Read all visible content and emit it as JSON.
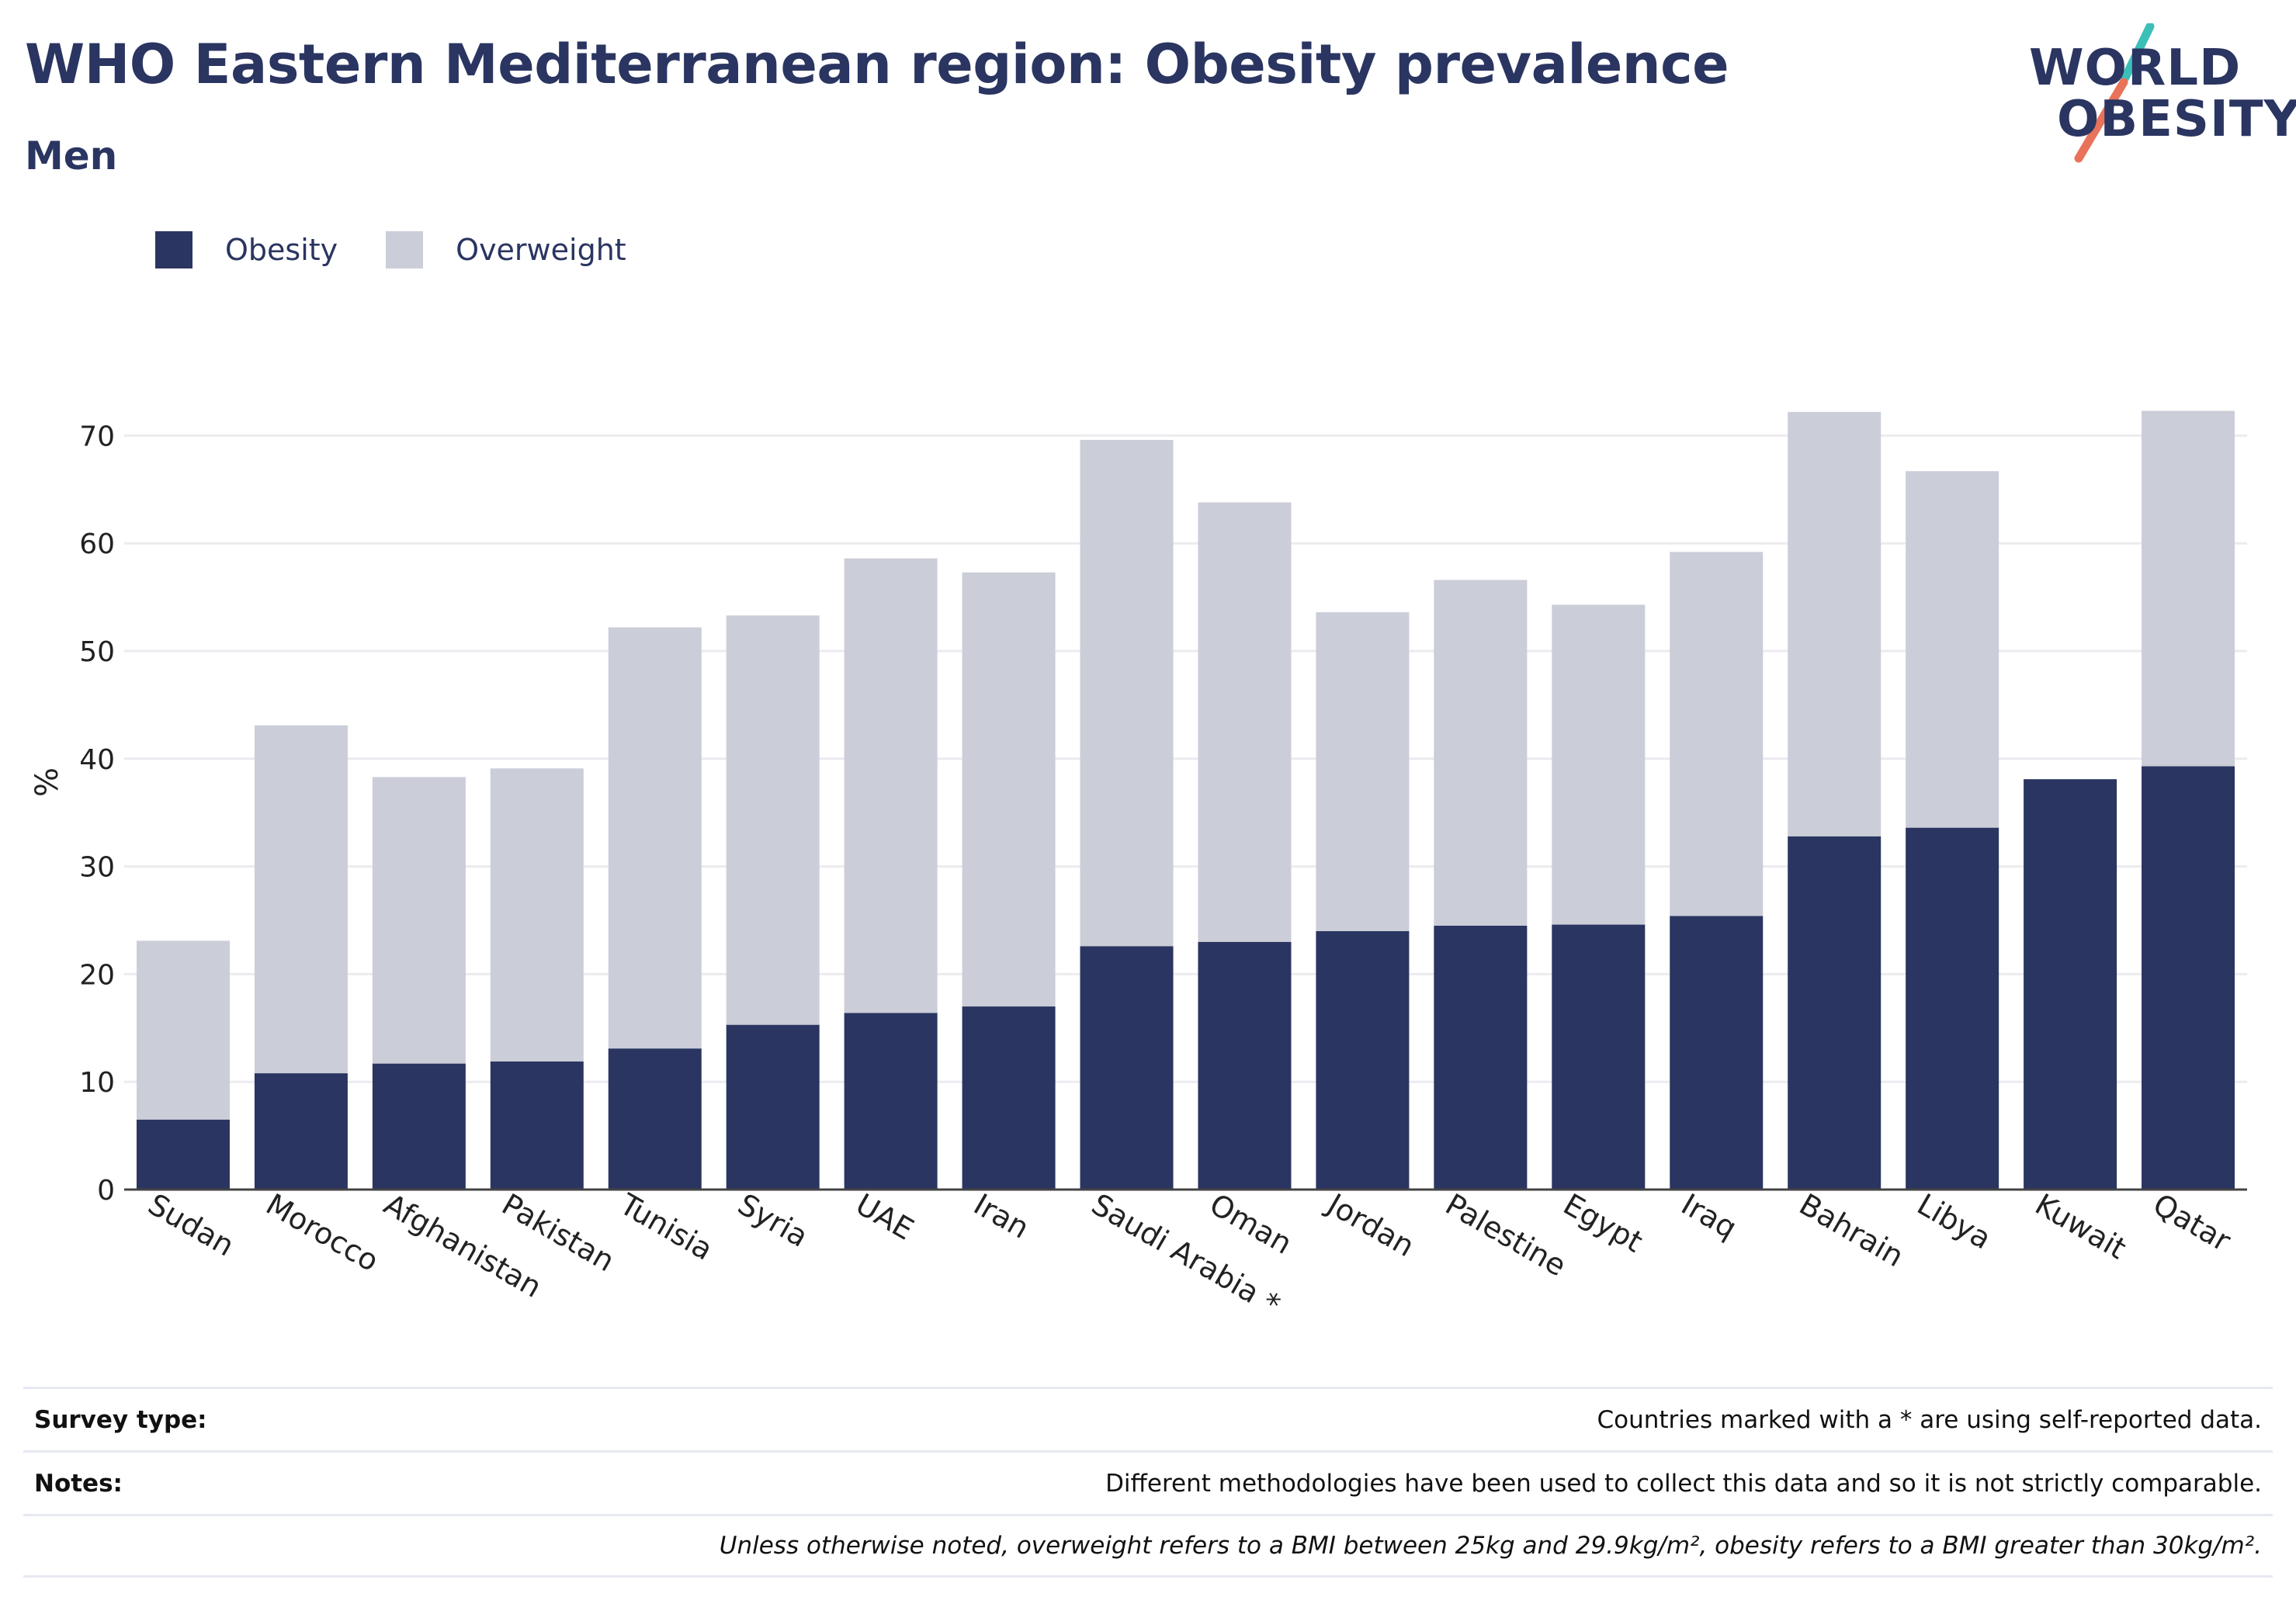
{
  "header": {
    "title": "WHO Eastern Mediterranean region: Obesity prevalence",
    "subtitle": "Men"
  },
  "logo": {
    "line1": "WORLD",
    "line2": "OBESITY",
    "accent_teal": "#3bbfb8",
    "accent_coral": "#e8735a"
  },
  "legend": {
    "items": [
      {
        "label": "Obesity",
        "color": "#2a3561"
      },
      {
        "label": "Overweight",
        "color": "#cbcdd8"
      }
    ]
  },
  "chart_data": {
    "type": "bar",
    "stacked": true,
    "title": "",
    "xlabel": "",
    "ylabel": "%",
    "ylim": [
      0,
      75
    ],
    "yticks": [
      0,
      10,
      20,
      30,
      40,
      50,
      60,
      70
    ],
    "grid": true,
    "legend_position": "top-left",
    "categories": [
      "Sudan",
      "Morocco",
      "Afghanistan",
      "Pakistan",
      "Tunisia",
      "Syria",
      "UAE",
      "Iran",
      "Saudi Arabia *",
      "Oman",
      "Jordan",
      "Palestine",
      "Egypt",
      "Iraq",
      "Bahrain",
      "Libya",
      "Kuwait",
      "Qatar"
    ],
    "series": [
      {
        "name": "Obesity",
        "color": "#2a3561",
        "values": [
          6.5,
          10.8,
          11.7,
          11.9,
          13.1,
          15.3,
          16.4,
          17.0,
          22.6,
          23.0,
          24.0,
          24.5,
          24.6,
          25.4,
          32.8,
          33.6,
          38.1,
          39.3
        ]
      },
      {
        "name": "Overweight",
        "color": "#cbcdd8",
        "values": [
          16.6,
          32.3,
          26.6,
          27.2,
          39.1,
          38.0,
          42.2,
          40.3,
          47.0,
          40.8,
          29.6,
          32.1,
          29.7,
          33.8,
          39.4,
          33.1,
          0,
          33.0
        ]
      }
    ]
  },
  "notes": {
    "survey_label": "Survey type:",
    "survey_text": "Countries marked with a * are using self-reported data.",
    "notes_label": "Notes:",
    "notes_text": "Different methodologies have been used to collect this data and so it is not strictly comparable.",
    "definition_text": "Unless otherwise noted, overweight refers to a BMI between 25kg and 29.9kg/m², obesity refers to a BMI greater than 30kg/m²."
  }
}
